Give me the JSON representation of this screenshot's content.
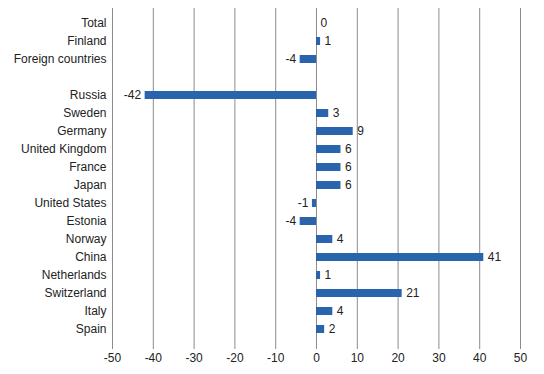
{
  "chart_data": {
    "type": "bar",
    "orientation": "horizontal",
    "categories": [
      "Total",
      "Finland",
      "Foreign countries",
      null,
      "Russia",
      "Sweden",
      "Germany",
      "United Kingdom",
      "France",
      "Japan",
      "United States",
      "Estonia",
      "Norway",
      "China",
      "Netherlands",
      "Switzerland",
      "Italy",
      "Spain"
    ],
    "values": [
      0,
      1,
      -4,
      null,
      -42,
      3,
      9,
      6,
      6,
      6,
      -1,
      -4,
      4,
      41,
      1,
      21,
      4,
      2
    ],
    "color": "#2a64ad",
    "xlim": [
      -50,
      50
    ],
    "xticks": [
      -50,
      -40,
      -30,
      -20,
      -10,
      0,
      10,
      20,
      30,
      40,
      50
    ],
    "grid": true,
    "data_labels": true
  }
}
